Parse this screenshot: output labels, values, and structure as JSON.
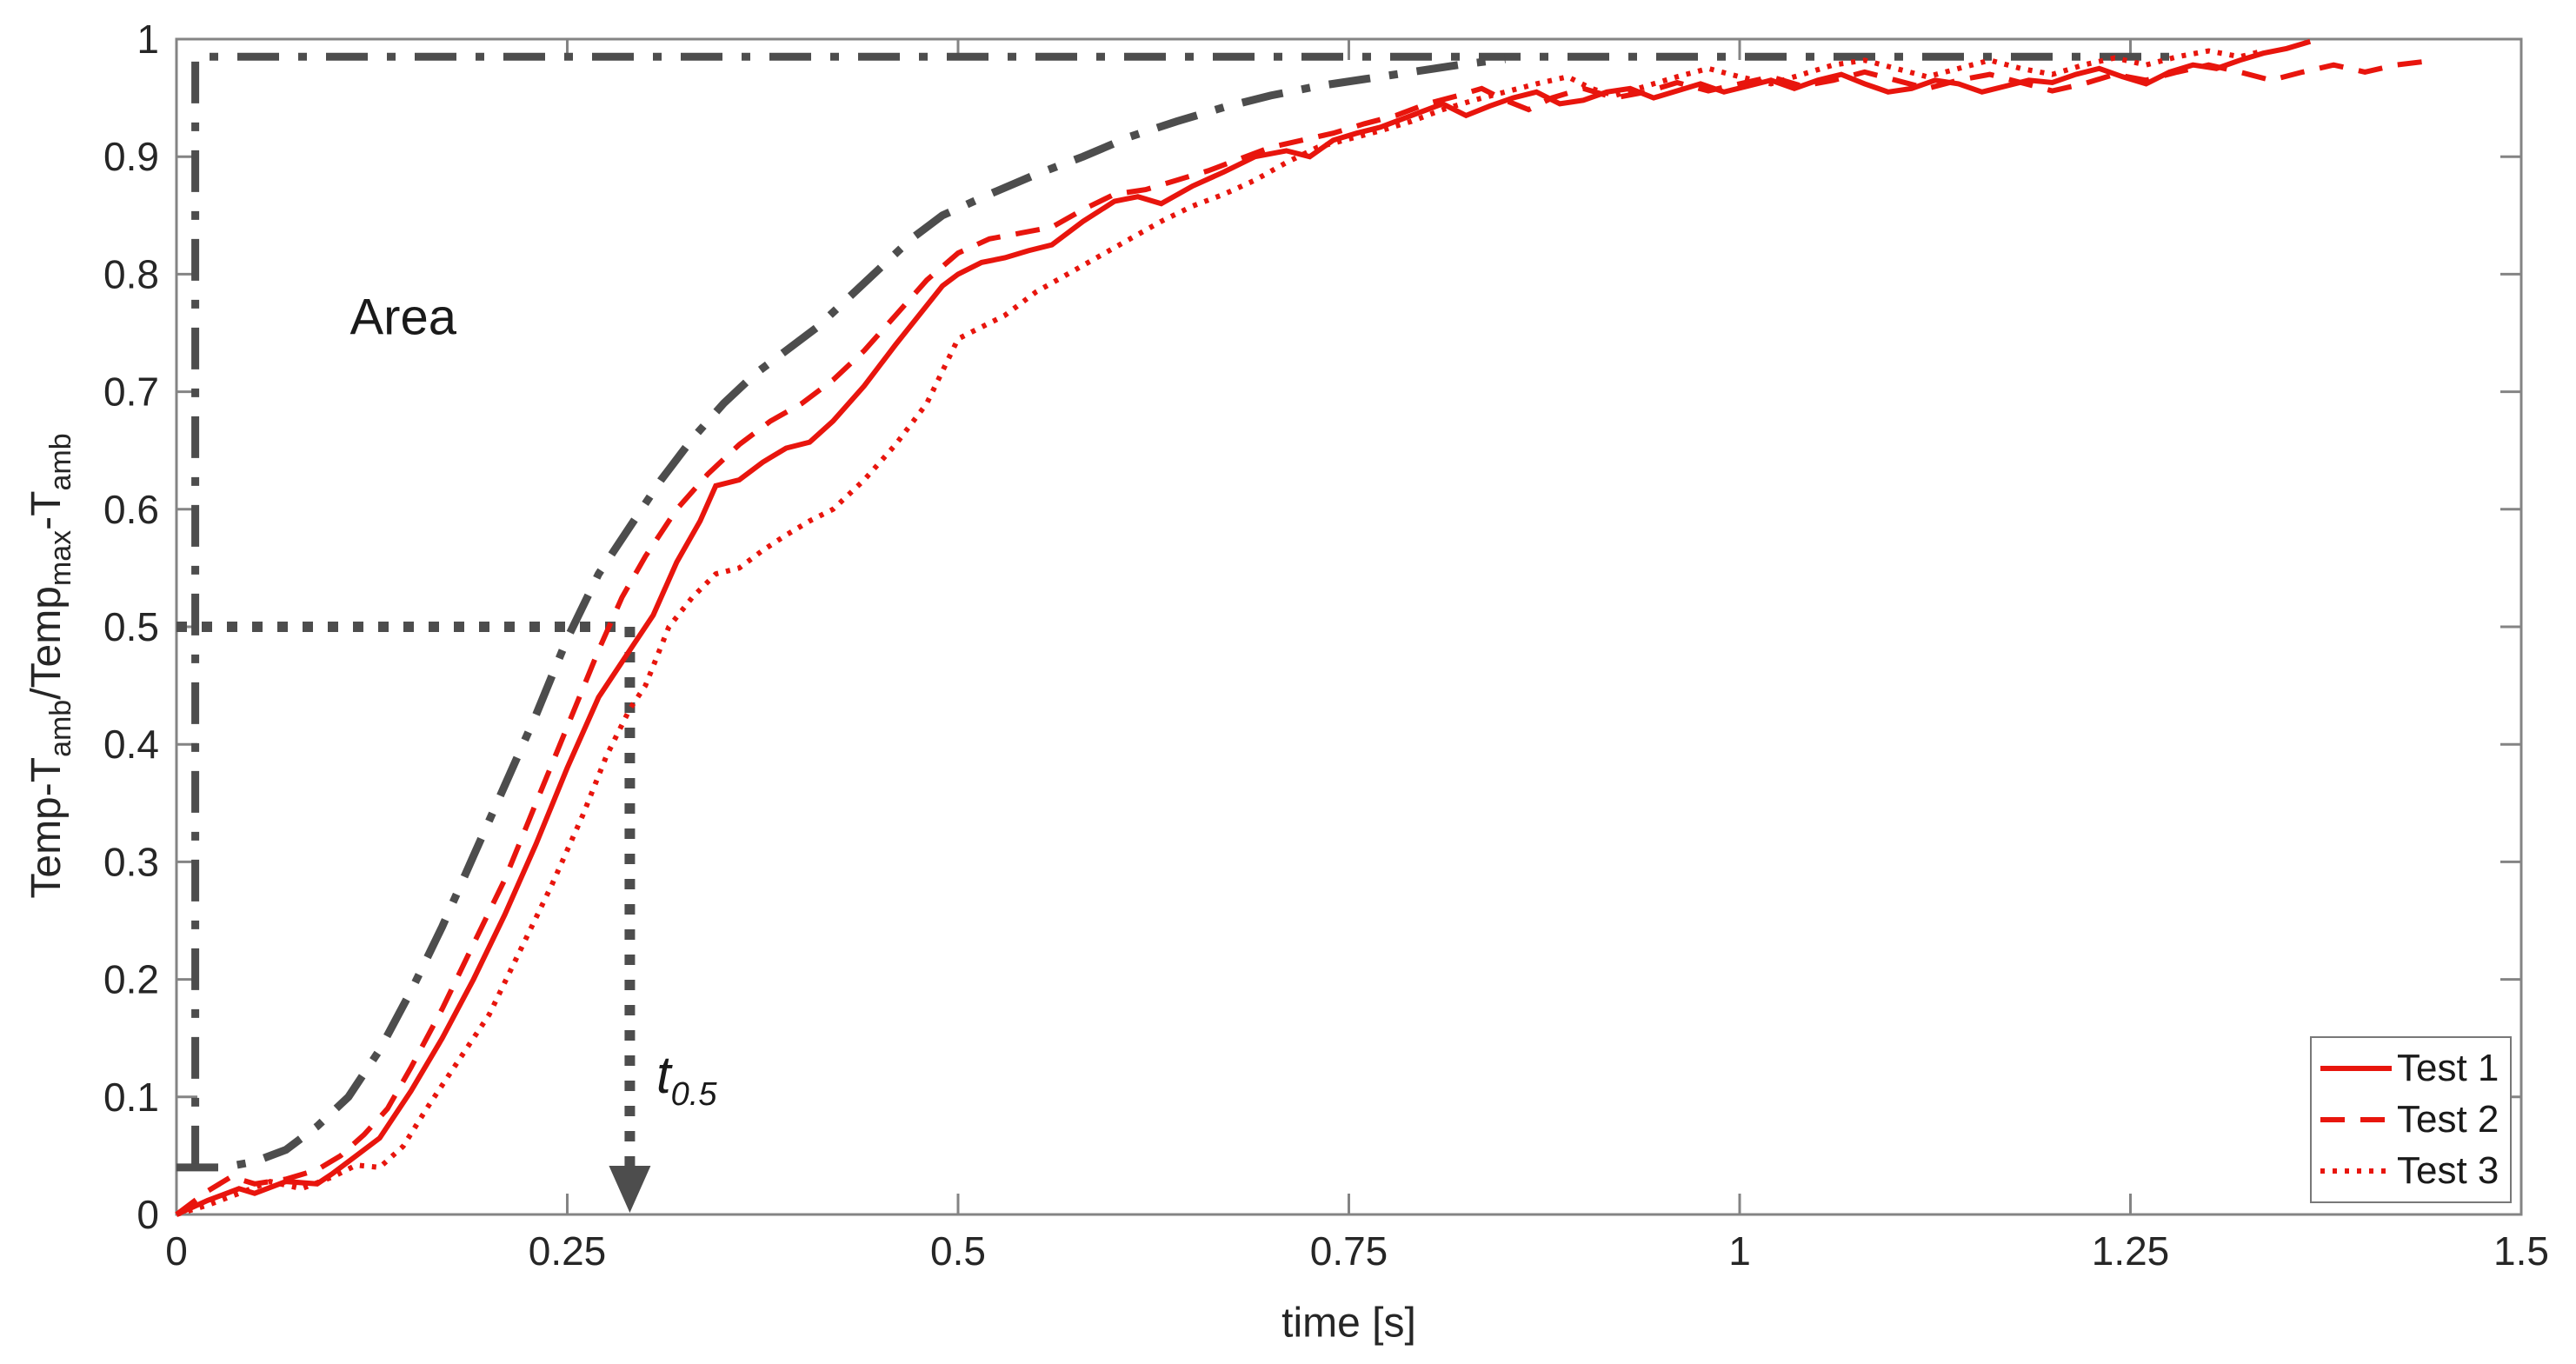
{
  "chart_data": {
    "type": "line",
    "title": "",
    "xlabel": "time [s]",
    "ylabel_plain": "Temp-T_amb/Temp_max-T_amb",
    "ylabel_parts": [
      {
        "t": "Temp-T",
        "sub": false
      },
      {
        "t": "amb",
        "sub": true
      },
      {
        "t": "/Temp",
        "sub": false
      },
      {
        "t": "max",
        "sub": true
      },
      {
        "t": "-T",
        "sub": false
      },
      {
        "t": "amb",
        "sub": true
      }
    ],
    "xlim": [
      0,
      1.5
    ],
    "ylim": [
      0,
      1
    ],
    "x_ticks": [
      0,
      0.25,
      0.5,
      0.75,
      1,
      1.25,
      1.5
    ],
    "x_tick_labels": [
      "0",
      "0.25",
      "0.5",
      "0.75",
      "1",
      "1.25",
      "1.5"
    ],
    "y_ticks": [
      0,
      0.1,
      0.2,
      0.3,
      0.4,
      0.5,
      0.6,
      0.7,
      0.8,
      0.9,
      1
    ],
    "y_tick_labels": [
      "0",
      "0.1",
      "0.2",
      "0.3",
      "0.4",
      "0.5",
      "0.6",
      "0.7",
      "0.8",
      "0.9",
      "1"
    ],
    "grid": false,
    "legend_position": "bottom-right",
    "colors": {
      "test_red": "#e8150d",
      "reference_gray": "#4d4d4d",
      "axis_gray": "#848484",
      "tick_text": "#262626"
    },
    "series": [
      {
        "name": "Test 1",
        "color": "#e8150d",
        "style": "solid",
        "width": 6,
        "in_legend": true,
        "points": [
          [
            0,
            0
          ],
          [
            0.02,
            0.012
          ],
          [
            0.04,
            0.022
          ],
          [
            0.05,
            0.018
          ],
          [
            0.07,
            0.028
          ],
          [
            0.09,
            0.026
          ],
          [
            0.1,
            0.035
          ],
          [
            0.115,
            0.05
          ],
          [
            0.13,
            0.065
          ],
          [
            0.15,
            0.105
          ],
          [
            0.17,
            0.15
          ],
          [
            0.19,
            0.2
          ],
          [
            0.21,
            0.255
          ],
          [
            0.23,
            0.315
          ],
          [
            0.25,
            0.38
          ],
          [
            0.27,
            0.44
          ],
          [
            0.29,
            0.48
          ],
          [
            0.305,
            0.51
          ],
          [
            0.32,
            0.555
          ],
          [
            0.335,
            0.59
          ],
          [
            0.345,
            0.62
          ],
          [
            0.36,
            0.625
          ],
          [
            0.375,
            0.64
          ],
          [
            0.39,
            0.652
          ],
          [
            0.405,
            0.657
          ],
          [
            0.42,
            0.675
          ],
          [
            0.44,
            0.705
          ],
          [
            0.46,
            0.74
          ],
          [
            0.475,
            0.765
          ],
          [
            0.49,
            0.79
          ],
          [
            0.5,
            0.8
          ],
          [
            0.515,
            0.81
          ],
          [
            0.53,
            0.814
          ],
          [
            0.545,
            0.82
          ],
          [
            0.56,
            0.825
          ],
          [
            0.58,
            0.845
          ],
          [
            0.6,
            0.862
          ],
          [
            0.615,
            0.866
          ],
          [
            0.63,
            0.86
          ],
          [
            0.65,
            0.875
          ],
          [
            0.67,
            0.887
          ],
          [
            0.69,
            0.9
          ],
          [
            0.71,
            0.905
          ],
          [
            0.725,
            0.9
          ],
          [
            0.74,
            0.914
          ],
          [
            0.755,
            0.92
          ],
          [
            0.77,
            0.925
          ],
          [
            0.79,
            0.935
          ],
          [
            0.81,
            0.945
          ],
          [
            0.825,
            0.935
          ],
          [
            0.84,
            0.943
          ],
          [
            0.855,
            0.95
          ],
          [
            0.87,
            0.955
          ],
          [
            0.885,
            0.945
          ],
          [
            0.9,
            0.948
          ],
          [
            0.915,
            0.955
          ],
          [
            0.93,
            0.958
          ],
          [
            0.945,
            0.95
          ],
          [
            0.96,
            0.956
          ],
          [
            0.975,
            0.962
          ],
          [
            0.99,
            0.955
          ],
          [
            1.005,
            0.96
          ],
          [
            1.02,
            0.965
          ],
          [
            1.035,
            0.958
          ],
          [
            1.05,
            0.965
          ],
          [
            1.065,
            0.97
          ],
          [
            1.08,
            0.962
          ],
          [
            1.095,
            0.955
          ],
          [
            1.11,
            0.958
          ],
          [
            1.125,
            0.965
          ],
          [
            1.14,
            0.962
          ],
          [
            1.155,
            0.955
          ],
          [
            1.17,
            0.96
          ],
          [
            1.185,
            0.965
          ],
          [
            1.2,
            0.963
          ],
          [
            1.215,
            0.97
          ],
          [
            1.23,
            0.975
          ],
          [
            1.245,
            0.968
          ],
          [
            1.26,
            0.962
          ],
          [
            1.275,
            0.972
          ],
          [
            1.29,
            0.978
          ],
          [
            1.305,
            0.975
          ],
          [
            1.32,
            0.982
          ],
          [
            1.335,
            0.988
          ],
          [
            1.35,
            0.992
          ],
          [
            1.365,
            0.998
          ]
        ]
      },
      {
        "name": "Test 2",
        "color": "#e8150d",
        "style": "dashed",
        "width": 6,
        "in_legend": true,
        "points": [
          [
            0,
            0
          ],
          [
            0.02,
            0.02
          ],
          [
            0.035,
            0.032
          ],
          [
            0.05,
            0.026
          ],
          [
            0.07,
            0.03
          ],
          [
            0.09,
            0.038
          ],
          [
            0.105,
            0.05
          ],
          [
            0.12,
            0.068
          ],
          [
            0.135,
            0.09
          ],
          [
            0.15,
            0.125
          ],
          [
            0.17,
            0.175
          ],
          [
            0.19,
            0.23
          ],
          [
            0.21,
            0.285
          ],
          [
            0.23,
            0.35
          ],
          [
            0.25,
            0.415
          ],
          [
            0.27,
            0.48
          ],
          [
            0.285,
            0.525
          ],
          [
            0.3,
            0.56
          ],
          [
            0.32,
            0.6
          ],
          [
            0.34,
            0.63
          ],
          [
            0.36,
            0.655
          ],
          [
            0.38,
            0.675
          ],
          [
            0.4,
            0.69
          ],
          [
            0.42,
            0.71
          ],
          [
            0.44,
            0.735
          ],
          [
            0.46,
            0.765
          ],
          [
            0.48,
            0.795
          ],
          [
            0.5,
            0.818
          ],
          [
            0.52,
            0.83
          ],
          [
            0.54,
            0.835
          ],
          [
            0.56,
            0.84
          ],
          [
            0.58,
            0.855
          ],
          [
            0.6,
            0.868
          ],
          [
            0.62,
            0.872
          ],
          [
            0.64,
            0.88
          ],
          [
            0.66,
            0.888
          ],
          [
            0.68,
            0.898
          ],
          [
            0.7,
            0.908
          ],
          [
            0.72,
            0.914
          ],
          [
            0.74,
            0.92
          ],
          [
            0.76,
            0.928
          ],
          [
            0.78,
            0.935
          ],
          [
            0.8,
            0.945
          ],
          [
            0.82,
            0.952
          ],
          [
            0.835,
            0.958
          ],
          [
            0.85,
            0.948
          ],
          [
            0.865,
            0.94
          ],
          [
            0.88,
            0.95
          ],
          [
            0.9,
            0.958
          ],
          [
            0.92,
            0.95
          ],
          [
            0.94,
            0.955
          ],
          [
            0.96,
            0.963
          ],
          [
            0.98,
            0.956
          ],
          [
            1.0,
            0.962
          ],
          [
            1.02,
            0.968
          ],
          [
            1.04,
            0.96
          ],
          [
            1.06,
            0.965
          ],
          [
            1.08,
            0.972
          ],
          [
            1.1,
            0.965
          ],
          [
            1.12,
            0.958
          ],
          [
            1.14,
            0.965
          ],
          [
            1.16,
            0.97
          ],
          [
            1.18,
            0.963
          ],
          [
            1.2,
            0.956
          ],
          [
            1.22,
            0.962
          ],
          [
            1.24,
            0.97
          ],
          [
            1.26,
            0.965
          ],
          [
            1.28,
            0.972
          ],
          [
            1.3,
            0.978
          ],
          [
            1.32,
            0.972
          ],
          [
            1.34,
            0.965
          ],
          [
            1.36,
            0.972
          ],
          [
            1.38,
            0.978
          ],
          [
            1.4,
            0.972
          ],
          [
            1.42,
            0.978
          ],
          [
            1.445,
            0.982
          ]
        ]
      },
      {
        "name": "Test 3",
        "color": "#e8150d",
        "style": "dotted",
        "width": 6,
        "in_legend": true,
        "points": [
          [
            0,
            0
          ],
          [
            0.02,
            0.008
          ],
          [
            0.04,
            0.018
          ],
          [
            0.06,
            0.028
          ],
          [
            0.08,
            0.022
          ],
          [
            0.1,
            0.032
          ],
          [
            0.115,
            0.042
          ],
          [
            0.13,
            0.04
          ],
          [
            0.145,
            0.058
          ],
          [
            0.16,
            0.09
          ],
          [
            0.18,
            0.13
          ],
          [
            0.2,
            0.17
          ],
          [
            0.22,
            0.225
          ],
          [
            0.24,
            0.28
          ],
          [
            0.26,
            0.34
          ],
          [
            0.275,
            0.39
          ],
          [
            0.29,
            0.43
          ],
          [
            0.3,
            0.45
          ],
          [
            0.315,
            0.5
          ],
          [
            0.33,
            0.525
          ],
          [
            0.345,
            0.545
          ],
          [
            0.36,
            0.55
          ],
          [
            0.375,
            0.565
          ],
          [
            0.39,
            0.578
          ],
          [
            0.405,
            0.59
          ],
          [
            0.42,
            0.6
          ],
          [
            0.44,
            0.625
          ],
          [
            0.46,
            0.655
          ],
          [
            0.48,
            0.69
          ],
          [
            0.5,
            0.745
          ],
          [
            0.515,
            0.755
          ],
          [
            0.53,
            0.765
          ],
          [
            0.55,
            0.785
          ],
          [
            0.57,
            0.8
          ],
          [
            0.59,
            0.815
          ],
          [
            0.61,
            0.83
          ],
          [
            0.63,
            0.845
          ],
          [
            0.65,
            0.858
          ],
          [
            0.67,
            0.868
          ],
          [
            0.69,
            0.88
          ],
          [
            0.71,
            0.895
          ],
          [
            0.73,
            0.908
          ],
          [
            0.75,
            0.915
          ],
          [
            0.77,
            0.922
          ],
          [
            0.79,
            0.93
          ],
          [
            0.81,
            0.94
          ],
          [
            0.83,
            0.948
          ],
          [
            0.85,
            0.955
          ],
          [
            0.87,
            0.962
          ],
          [
            0.89,
            0.968
          ],
          [
            0.905,
            0.958
          ],
          [
            0.92,
            0.952
          ],
          [
            0.94,
            0.96
          ],
          [
            0.96,
            0.968
          ],
          [
            0.98,
            0.975
          ],
          [
            1.0,
            0.968
          ],
          [
            1.02,
            0.962
          ],
          [
            1.04,
            0.97
          ],
          [
            1.06,
            0.978
          ],
          [
            1.08,
            0.982
          ],
          [
            1.1,
            0.975
          ],
          [
            1.12,
            0.968
          ],
          [
            1.14,
            0.975
          ],
          [
            1.16,
            0.982
          ],
          [
            1.18,
            0.975
          ],
          [
            1.2,
            0.97
          ],
          [
            1.22,
            0.978
          ],
          [
            1.24,
            0.984
          ],
          [
            1.26,
            0.978
          ],
          [
            1.28,
            0.985
          ],
          [
            1.3,
            0.99
          ],
          [
            1.32,
            0.985
          ],
          [
            1.335,
            0.99
          ]
        ]
      },
      {
        "name": "mean-reference",
        "color": "#4d4d4d",
        "style": "dashdot",
        "width": 9,
        "in_legend": false,
        "points": [
          [
            0,
            0.04
          ],
          [
            0.03,
            0.04
          ],
          [
            0.05,
            0.045
          ],
          [
            0.07,
            0.055
          ],
          [
            0.09,
            0.075
          ],
          [
            0.11,
            0.1
          ],
          [
            0.13,
            0.14
          ],
          [
            0.15,
            0.19
          ],
          [
            0.17,
            0.245
          ],
          [
            0.19,
            0.305
          ],
          [
            0.21,
            0.365
          ],
          [
            0.23,
            0.425
          ],
          [
            0.25,
            0.49
          ],
          [
            0.27,
            0.545
          ],
          [
            0.29,
            0.585
          ],
          [
            0.31,
            0.625
          ],
          [
            0.33,
            0.66
          ],
          [
            0.35,
            0.69
          ],
          [
            0.37,
            0.715
          ],
          [
            0.39,
            0.735
          ],
          [
            0.41,
            0.755
          ],
          [
            0.43,
            0.78
          ],
          [
            0.45,
            0.805
          ],
          [
            0.47,
            0.83
          ],
          [
            0.49,
            0.85
          ],
          [
            0.52,
            0.868
          ],
          [
            0.55,
            0.885
          ],
          [
            0.58,
            0.9
          ],
          [
            0.61,
            0.917
          ],
          [
            0.64,
            0.93
          ],
          [
            0.67,
            0.942
          ],
          [
            0.7,
            0.952
          ],
          [
            0.73,
            0.96
          ],
          [
            0.76,
            0.966
          ],
          [
            0.79,
            0.972
          ],
          [
            0.82,
            0.978
          ],
          [
            0.85,
            0.983
          ]
        ]
      },
      {
        "name": "ideal-step",
        "color": "#4d4d4d",
        "style": "dashdot",
        "width": 9,
        "in_legend": false,
        "points": [
          [
            0.012,
            0.04
          ],
          [
            0.012,
            0.985
          ],
          [
            1.28,
            0.985
          ]
        ]
      }
    ],
    "annotations": {
      "area_label": {
        "text": "Area",
        "x": 0.145,
        "y": 0.763
      },
      "t05_label": {
        "base": "t",
        "sub": "0.5",
        "x": 0.307,
        "y": 0.115
      },
      "t05_marker": {
        "t": 0.29,
        "level": 0.5,
        "color": "#4d4d4d"
      }
    },
    "legend_entries": [
      "Test 1",
      "Test 2",
      "Test 3"
    ]
  }
}
